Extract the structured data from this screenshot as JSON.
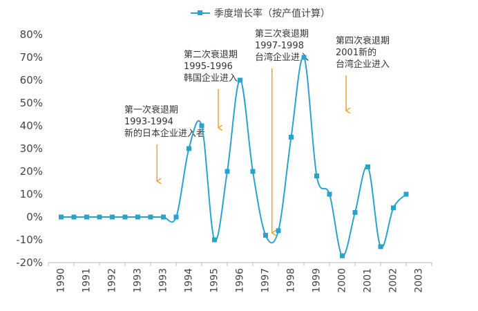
{
  "chart_data": {
    "type": "line",
    "legend": {
      "label": "季度增长率（按产值计算）",
      "placement": "top-center"
    },
    "x_categories": [
      "1990",
      "1991",
      "1992",
      "1993",
      "1993",
      "1994",
      "1995",
      "1996",
      "1997",
      "1998",
      "1999",
      "2000",
      "2001",
      "2002",
      "2003"
    ],
    "ylim": [
      -20,
      80
    ],
    "yticks": [
      "80%",
      "70%",
      "60%",
      "50%",
      "40%",
      "30%",
      "20%",
      "10%",
      "0%",
      "-10%",
      "-20%"
    ],
    "grid": false,
    "series": [
      {
        "name": "季度增长率（按产值计算）",
        "color": "#2aa3cc",
        "points": [
          {
            "x": 0.0,
            "y": 0
          },
          {
            "x": 0.5,
            "y": 0
          },
          {
            "x": 1.0,
            "y": 0
          },
          {
            "x": 1.5,
            "y": 0
          },
          {
            "x": 2.0,
            "y": 0
          },
          {
            "x": 2.5,
            "y": 0
          },
          {
            "x": 3.0,
            "y": 0
          },
          {
            "x": 3.5,
            "y": 0
          },
          {
            "x": 4.0,
            "y": 0
          },
          {
            "x": 4.5,
            "y": 0
          },
          {
            "x": 5.0,
            "y": 30
          },
          {
            "x": 5.5,
            "y": 40
          },
          {
            "x": 6.0,
            "y": -10
          },
          {
            "x": 6.5,
            "y": 20
          },
          {
            "x": 7.0,
            "y": 60
          },
          {
            "x": 7.5,
            "y": 20
          },
          {
            "x": 8.0,
            "y": -8
          },
          {
            "x": 8.5,
            "y": -6
          },
          {
            "x": 9.0,
            "y": 35
          },
          {
            "x": 9.5,
            "y": 70
          },
          {
            "x": 10.0,
            "y": 18
          },
          {
            "x": 10.5,
            "y": 10
          },
          {
            "x": 11.0,
            "y": -17
          },
          {
            "x": 11.5,
            "y": 2
          },
          {
            "x": 12.0,
            "y": 22
          },
          {
            "x": 12.5,
            "y": -13
          },
          {
            "x": 13.0,
            "y": 4
          },
          {
            "x": 13.5,
            "y": 10
          }
        ]
      }
    ],
    "annotations": [
      {
        "lines": [
          "第一次衰退期",
          "1993-1994",
          "新的日本企业进入者"
        ],
        "arrow_x": 3.75
      },
      {
        "lines": [
          "第二次衰退期",
          "1995-1996",
          "韩国企业进入"
        ],
        "arrow_x": 6.15
      },
      {
        "lines": [
          "第三次衰退期",
          "1997-1998",
          "台湾企业进入"
        ],
        "arrow_x": 8.25
      },
      {
        "lines": [
          "第四次衰退期",
          "2001新的",
          "台湾企业进入"
        ],
        "arrow_x": 11.15
      }
    ],
    "colors": {
      "series": "#2aa3cc",
      "arrow": "#f0a030",
      "axis": "#bbbbbb"
    }
  }
}
